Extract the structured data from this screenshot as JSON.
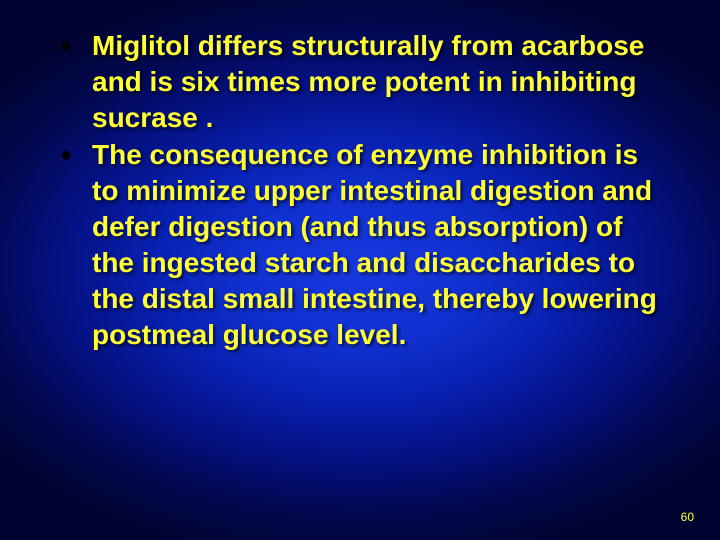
{
  "slide": {
    "background_gradient": {
      "type": "radial",
      "center_color": "#1838e0",
      "outer_color": "#010330"
    },
    "text_color": "#ffff33",
    "bullet_color": "#000000",
    "font_size_pt": 21,
    "font_weight": "bold",
    "bullets": [
      {
        "text": "Miglitol differs structurally from acarbose and is six times more potent in inhibiting sucrase ."
      },
      {
        "text": "The consequence of enzyme inhibition is to minimize upper intestinal digestion and defer digestion (and thus absorption) of the ingested starch and disaccharides to the distal small intestine, thereby lowering postmeal glucose level."
      }
    ],
    "page_number": "60"
  }
}
